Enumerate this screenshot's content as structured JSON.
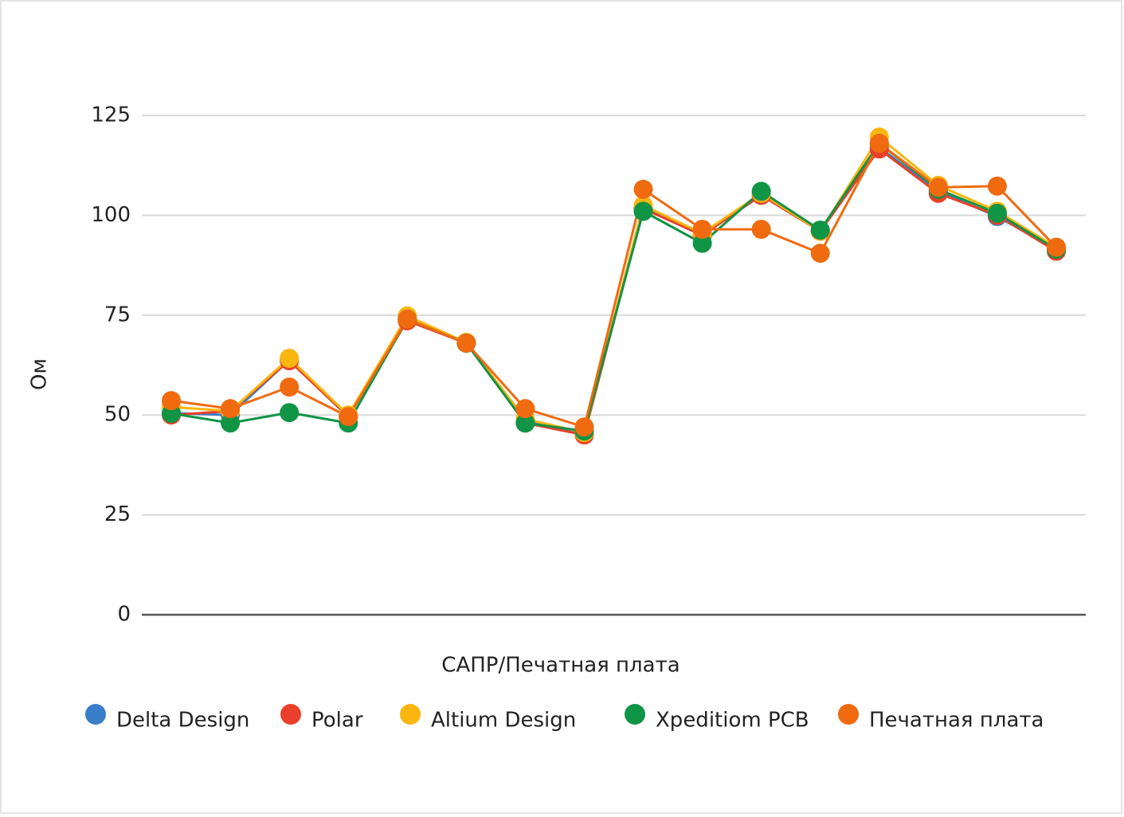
{
  "chart_data": {
    "type": "line",
    "x_label": "САПР/Печатная плата",
    "y_label": "Ом",
    "categories": [
      null,
      null,
      null,
      null,
      null,
      null,
      null,
      null,
      null,
      null,
      null,
      null,
      null,
      null,
      null,
      null
    ],
    "ylim": [
      0,
      125
    ],
    "yticks": [
      0,
      25,
      50,
      75,
      100,
      125
    ],
    "grid": true,
    "legend": "bottom",
    "series": [
      {
        "name": "Delta Design",
        "color": "#3a7dc8",
        "values": [
          50.5,
          50,
          63.8,
          49.8,
          74,
          68,
          48.5,
          45.5,
          102,
          95,
          105.5,
          96,
          117,
          106,
          99.7,
          91.5
        ]
      },
      {
        "name": "Polar",
        "color": "#e8402a",
        "values": [
          50,
          51,
          63.6,
          49.6,
          73.6,
          68,
          48,
          45,
          101.7,
          95,
          105,
          96,
          116.6,
          105.5,
          100,
          91
        ]
      },
      {
        "name": "Altium Design",
        "color": "#fbb50f",
        "values": [
          52,
          51,
          64.2,
          50,
          74.8,
          68.2,
          49,
          45.6,
          102.5,
          95.5,
          105.5,
          96,
          119.6,
          107.5,
          101,
          92
        ]
      },
      {
        "name": "Xpeditiom PCB",
        "color": "#109445",
        "values": [
          50.4,
          48,
          50.6,
          48,
          74,
          68,
          48,
          46,
          101,
          93,
          106,
          96.3,
          118,
          106.5,
          100.5,
          91.5
        ]
      },
      {
        "name": "Печатная плата",
        "color": "#f06a10",
        "values": [
          53.6,
          51.6,
          57,
          49.6,
          74,
          68,
          51.6,
          47,
          106.5,
          96.5,
          96.5,
          90.5,
          118,
          107,
          107.3,
          92
        ]
      }
    ]
  }
}
